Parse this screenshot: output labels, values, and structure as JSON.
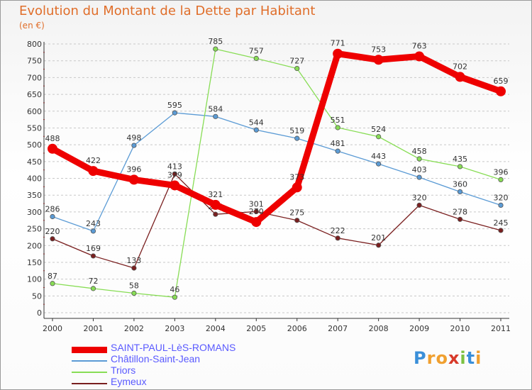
{
  "header": {
    "title": "Evolution du Montant de la Dette par Habitant",
    "unit": "(en €)"
  },
  "logo": {
    "text": "Proxiti"
  },
  "chart_data": {
    "type": "line",
    "title": "Evolution du Montant de la Dette par Habitant",
    "ylabel": "(en €)",
    "xlabel": "",
    "ylim": [
      0,
      800
    ],
    "yticks": [
      0,
      50,
      100,
      150,
      200,
      250,
      300,
      350,
      400,
      450,
      500,
      550,
      600,
      650,
      700,
      750,
      800
    ],
    "categories": [
      "2000",
      "2001",
      "2002",
      "2003",
      "2004",
      "2005",
      "2006",
      "2007",
      "2008",
      "2009",
      "2010",
      "2011"
    ],
    "grid": "horizontal dashed",
    "legend_position": "bottom-left",
    "series": [
      {
        "name": "SAINT-PAUL-LèS-ROMANS",
        "color": "#ee0000",
        "values": [
          488,
          422,
          396,
          379,
          321,
          270,
          373,
          771,
          753,
          763,
          702,
          659
        ]
      },
      {
        "name": "Châtillon-Saint-Jean",
        "color": "#5b9bd5",
        "values": [
          286,
          243,
          498,
          595,
          584,
          544,
          519,
          481,
          443,
          403,
          360,
          320
        ]
      },
      {
        "name": "Triors",
        "color": "#88dd55",
        "values": [
          87,
          72,
          58,
          46,
          785,
          757,
          727,
          551,
          524,
          458,
          435,
          396
        ]
      },
      {
        "name": "Eymeux",
        "color": "#7a1f1f",
        "values": [
          220,
          169,
          133,
          413,
          293,
          301,
          275,
          222,
          201,
          320,
          278,
          245
        ]
      }
    ]
  }
}
